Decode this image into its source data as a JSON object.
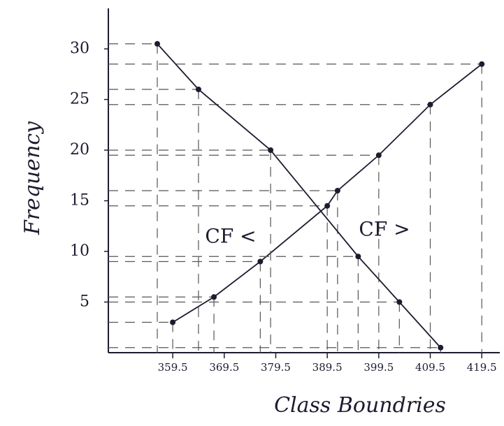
{
  "chart_data": {
    "type": "line",
    "x_label": "Class Boundries",
    "y_label": "Frequency",
    "xlim": [
      347,
      423
    ],
    "ylim": [
      0,
      34
    ],
    "xticks": [
      359.5,
      369.5,
      379.5,
      389.5,
      399.5,
      409.5,
      419.5
    ],
    "yticks": [
      5,
      10,
      15,
      20,
      25,
      30
    ],
    "guides": true,
    "series": [
      {
        "name": "CF <",
        "color": "#1c1c30",
        "x": [
          359.5,
          367.5,
          376.5,
          389.5,
          391.5,
          399.5,
          409.5,
          419.5
        ],
        "values": [
          3,
          5.5,
          9,
          14.5,
          16,
          19.5,
          24.5,
          28.5
        ]
      },
      {
        "name": "CF >",
        "color": "#1c1c30",
        "x": [
          356.5,
          364.5,
          378.5,
          395.5,
          403.5,
          411.5
        ],
        "values": [
          30.5,
          26,
          20,
          9.5,
          5,
          0.5
        ]
      }
    ]
  }
}
